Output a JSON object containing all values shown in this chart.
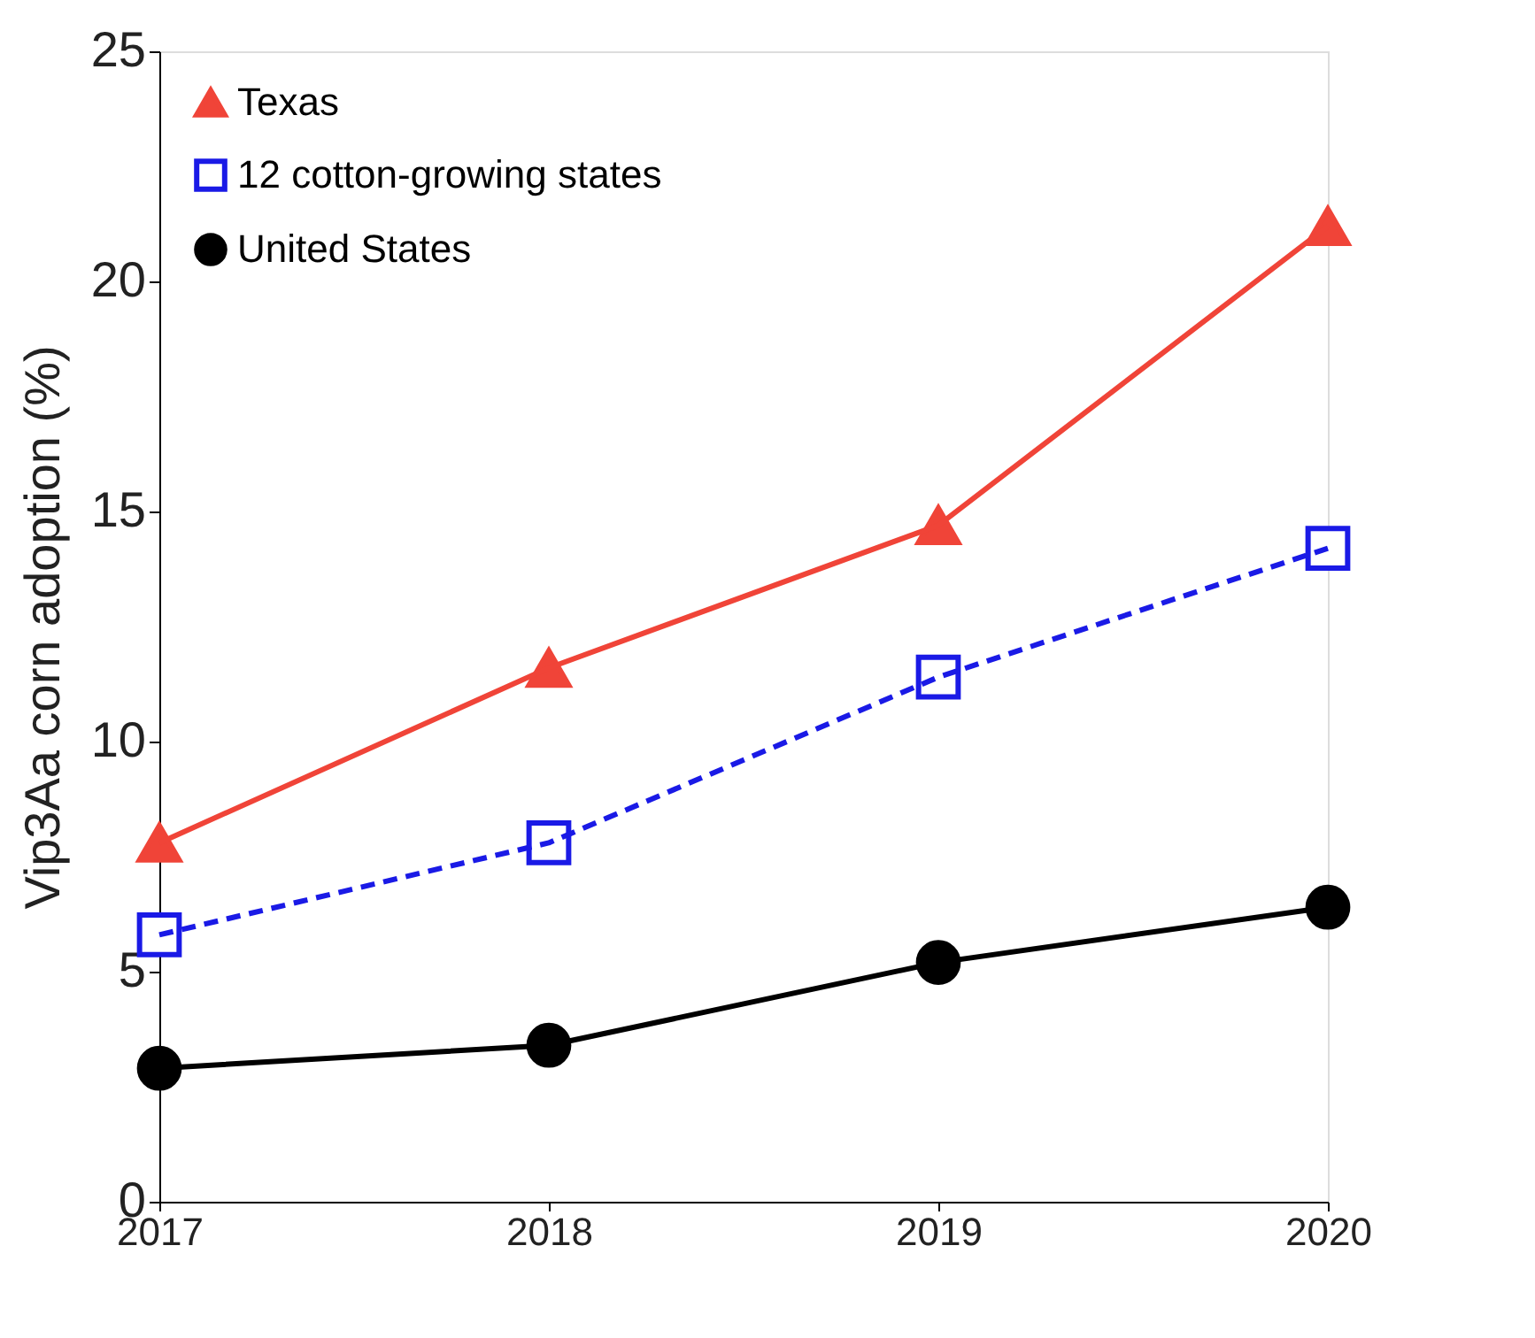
{
  "chart_data": {
    "type": "line",
    "ylabel": "Vip3Aa corn adoption (%)",
    "x": [
      2017,
      2018,
      2019,
      2020
    ],
    "xlim": [
      2017,
      2020
    ],
    "xticks": [
      2017,
      2018,
      2019,
      2020
    ],
    "ylim": [
      0,
      25
    ],
    "yticks": [
      0,
      5,
      10,
      15,
      20,
      25
    ],
    "grid": false,
    "legend": "top left",
    "series": [
      {
        "name": "Texas",
        "color": "#f04438",
        "values": [
          7.8,
          11.6,
          14.7,
          21.2
        ],
        "marker": "triangle",
        "line_style": "solid"
      },
      {
        "name": "12 cotton-growing states",
        "color": "#1a1ae6",
        "values": [
          5.8,
          7.8,
          11.4,
          14.2
        ],
        "marker": "square",
        "line_style": "dashed"
      },
      {
        "name": "United States",
        "color": "#000000",
        "values": [
          2.9,
          3.4,
          5.2,
          6.4
        ],
        "marker": "circle",
        "line_style": "solid"
      }
    ]
  }
}
